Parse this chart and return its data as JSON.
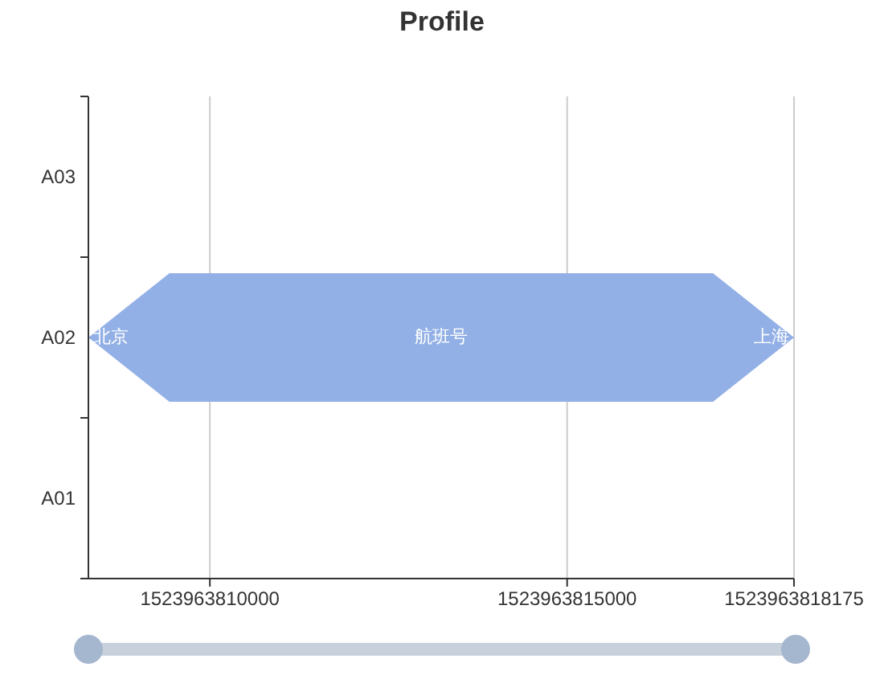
{
  "chart_data": {
    "type": "bar",
    "title": "Profile",
    "orientation": "horizontal",
    "categories": [
      "A03",
      "A02",
      "A01"
    ],
    "values": [
      null,
      9875,
      null
    ],
    "base": [
      null,
      1523963808300,
      null
    ],
    "color": "#93b0e6",
    "xlim": [
      1523963808300,
      1523963818175
    ],
    "xticks": [
      1523963810000,
      1523963815000,
      1523963818175
    ],
    "grid": "x",
    "annotations": [
      {
        "text": "北京",
        "x": 1523963808300,
        "y": "A02"
      },
      "航班号",
      {
        "text": "上海",
        "x": 1523963818175,
        "y": "A02"
      }
    ]
  }
}
